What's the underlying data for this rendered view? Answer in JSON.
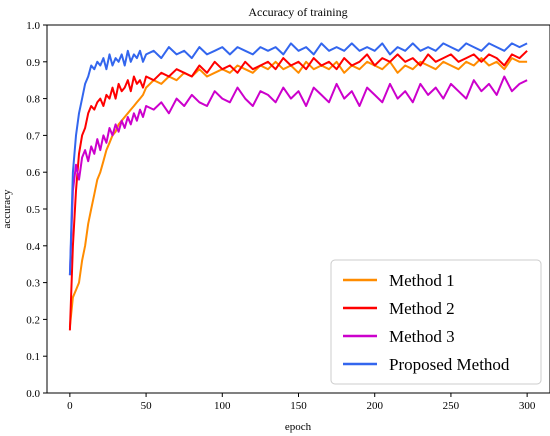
{
  "chart_data": {
    "type": "line",
    "title": "Accuracy of training",
    "xlabel": "epoch",
    "ylabel": "accuracy",
    "xlim": [
      -15,
      315
    ],
    "ylim": [
      0.0,
      1.0
    ],
    "xticks": [
      0,
      50,
      100,
      150,
      200,
      250,
      300
    ],
    "xtick_labels": [
      "0",
      "50",
      "100",
      "150",
      "200",
      "250",
      "300"
    ],
    "yticks": [
      0.0,
      0.1,
      0.2,
      0.3,
      0.4,
      0.5,
      0.6,
      0.7,
      0.8,
      0.9,
      1.0
    ],
    "ytick_labels": [
      "0.0",
      "0.1",
      "0.2",
      "0.3",
      "0.4",
      "0.5",
      "0.6",
      "0.7",
      "0.8",
      "0.9",
      "1.0"
    ],
    "grid": false,
    "legend_position": "bottom-right",
    "series": [
      {
        "name": "Method 1",
        "color": "#ff8c00",
        "x": [
          0,
          2,
          4,
          6,
          8,
          10,
          12,
          14,
          16,
          18,
          20,
          22,
          24,
          26,
          28,
          30,
          32,
          34,
          36,
          38,
          40,
          42,
          44,
          46,
          48,
          50,
          55,
          60,
          65,
          70,
          75,
          80,
          85,
          90,
          95,
          100,
          105,
          110,
          115,
          120,
          125,
          130,
          135,
          140,
          145,
          150,
          155,
          160,
          165,
          170,
          175,
          180,
          185,
          190,
          195,
          200,
          205,
          210,
          215,
          220,
          225,
          230,
          235,
          240,
          245,
          250,
          255,
          260,
          265,
          270,
          275,
          280,
          285,
          290,
          295,
          300
        ],
        "y": [
          0.18,
          0.26,
          0.28,
          0.3,
          0.36,
          0.4,
          0.46,
          0.5,
          0.54,
          0.58,
          0.6,
          0.63,
          0.66,
          0.68,
          0.7,
          0.71,
          0.73,
          0.74,
          0.75,
          0.76,
          0.77,
          0.78,
          0.79,
          0.8,
          0.81,
          0.83,
          0.85,
          0.84,
          0.86,
          0.85,
          0.87,
          0.86,
          0.88,
          0.86,
          0.87,
          0.88,
          0.87,
          0.89,
          0.88,
          0.87,
          0.89,
          0.88,
          0.9,
          0.88,
          0.89,
          0.87,
          0.9,
          0.88,
          0.89,
          0.88,
          0.9,
          0.87,
          0.89,
          0.88,
          0.9,
          0.89,
          0.88,
          0.9,
          0.87,
          0.89,
          0.88,
          0.9,
          0.89,
          0.88,
          0.9,
          0.89,
          0.88,
          0.9,
          0.89,
          0.91,
          0.89,
          0.9,
          0.88,
          0.91,
          0.9,
          0.9
        ]
      },
      {
        "name": "Method 2",
        "color": "#ff0000",
        "x": [
          0,
          2,
          4,
          6,
          8,
          10,
          12,
          14,
          16,
          18,
          20,
          22,
          24,
          26,
          28,
          30,
          32,
          34,
          36,
          38,
          40,
          42,
          44,
          46,
          48,
          50,
          55,
          60,
          65,
          70,
          75,
          80,
          85,
          90,
          95,
          100,
          105,
          110,
          115,
          120,
          125,
          130,
          135,
          140,
          145,
          150,
          155,
          160,
          165,
          170,
          175,
          180,
          185,
          190,
          195,
          200,
          205,
          210,
          215,
          220,
          225,
          230,
          235,
          240,
          245,
          250,
          255,
          260,
          265,
          270,
          275,
          280,
          285,
          290,
          295,
          300
        ],
        "y": [
          0.17,
          0.4,
          0.55,
          0.65,
          0.7,
          0.72,
          0.76,
          0.78,
          0.77,
          0.79,
          0.8,
          0.78,
          0.81,
          0.8,
          0.83,
          0.8,
          0.84,
          0.82,
          0.83,
          0.85,
          0.82,
          0.86,
          0.84,
          0.85,
          0.83,
          0.86,
          0.85,
          0.87,
          0.86,
          0.88,
          0.87,
          0.86,
          0.89,
          0.87,
          0.9,
          0.88,
          0.89,
          0.87,
          0.9,
          0.88,
          0.89,
          0.9,
          0.88,
          0.91,
          0.89,
          0.9,
          0.88,
          0.91,
          0.89,
          0.9,
          0.88,
          0.91,
          0.89,
          0.9,
          0.92,
          0.89,
          0.91,
          0.9,
          0.92,
          0.9,
          0.91,
          0.89,
          0.92,
          0.9,
          0.91,
          0.92,
          0.9,
          0.91,
          0.92,
          0.9,
          0.92,
          0.91,
          0.89,
          0.92,
          0.91,
          0.93
        ]
      },
      {
        "name": "Method 3",
        "color": "#cc00cc",
        "x": [
          0,
          2,
          4,
          6,
          8,
          10,
          12,
          14,
          16,
          18,
          20,
          22,
          24,
          26,
          28,
          30,
          32,
          34,
          36,
          38,
          40,
          42,
          44,
          46,
          48,
          50,
          55,
          60,
          65,
          70,
          75,
          80,
          85,
          90,
          95,
          100,
          105,
          110,
          115,
          120,
          125,
          130,
          135,
          140,
          145,
          150,
          155,
          160,
          165,
          170,
          175,
          180,
          185,
          190,
          195,
          200,
          205,
          210,
          215,
          220,
          225,
          230,
          235,
          240,
          245,
          250,
          255,
          260,
          265,
          270,
          275,
          280,
          285,
          290,
          295,
          300
        ],
        "y": [
          0.32,
          0.55,
          0.62,
          0.58,
          0.64,
          0.66,
          0.63,
          0.67,
          0.65,
          0.69,
          0.66,
          0.7,
          0.68,
          0.72,
          0.7,
          0.73,
          0.71,
          0.74,
          0.72,
          0.75,
          0.73,
          0.76,
          0.74,
          0.77,
          0.75,
          0.78,
          0.77,
          0.79,
          0.76,
          0.8,
          0.78,
          0.81,
          0.79,
          0.78,
          0.82,
          0.8,
          0.79,
          0.83,
          0.8,
          0.78,
          0.82,
          0.81,
          0.79,
          0.83,
          0.8,
          0.82,
          0.78,
          0.83,
          0.81,
          0.79,
          0.84,
          0.8,
          0.82,
          0.78,
          0.83,
          0.81,
          0.79,
          0.84,
          0.8,
          0.82,
          0.79,
          0.84,
          0.81,
          0.83,
          0.8,
          0.84,
          0.82,
          0.8,
          0.85,
          0.82,
          0.84,
          0.81,
          0.86,
          0.82,
          0.84,
          0.85
        ]
      },
      {
        "name": "Proposed Method",
        "color": "#3366ee",
        "x": [
          0,
          2,
          4,
          6,
          8,
          10,
          12,
          14,
          16,
          18,
          20,
          22,
          24,
          26,
          28,
          30,
          32,
          34,
          36,
          38,
          40,
          42,
          44,
          46,
          48,
          50,
          55,
          60,
          65,
          70,
          75,
          80,
          85,
          90,
          95,
          100,
          105,
          110,
          115,
          120,
          125,
          130,
          135,
          140,
          145,
          150,
          155,
          160,
          165,
          170,
          175,
          180,
          185,
          190,
          195,
          200,
          205,
          210,
          215,
          220,
          225,
          230,
          235,
          240,
          245,
          250,
          255,
          260,
          265,
          270,
          275,
          280,
          285,
          290,
          295,
          300
        ],
        "y": [
          0.32,
          0.6,
          0.7,
          0.76,
          0.8,
          0.84,
          0.86,
          0.89,
          0.88,
          0.9,
          0.89,
          0.91,
          0.88,
          0.92,
          0.89,
          0.91,
          0.9,
          0.92,
          0.89,
          0.93,
          0.9,
          0.92,
          0.91,
          0.93,
          0.9,
          0.92,
          0.93,
          0.91,
          0.94,
          0.92,
          0.93,
          0.91,
          0.94,
          0.92,
          0.93,
          0.94,
          0.92,
          0.94,
          0.93,
          0.92,
          0.94,
          0.93,
          0.94,
          0.92,
          0.95,
          0.93,
          0.94,
          0.92,
          0.95,
          0.93,
          0.94,
          0.93,
          0.95,
          0.93,
          0.94,
          0.93,
          0.95,
          0.92,
          0.94,
          0.93,
          0.95,
          0.93,
          0.94,
          0.93,
          0.95,
          0.94,
          0.93,
          0.95,
          0.94,
          0.93,
          0.95,
          0.94,
          0.93,
          0.95,
          0.94,
          0.95
        ]
      }
    ]
  }
}
